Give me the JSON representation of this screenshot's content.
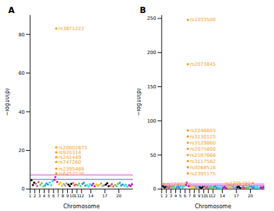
{
  "chart_data": [
    {
      "type": "scatter",
      "title": "A",
      "x_label": "Chromosome",
      "y_label": "−log10(p)",
      "xlim": [
        1,
        23
      ],
      "xticks": [
        1,
        2,
        3,
        4,
        5,
        6,
        7,
        8,
        9,
        10,
        11,
        12,
        14,
        17,
        20
      ],
      "ylim": [
        0,
        90
      ],
      "yticks": [
        0,
        20,
        40,
        60,
        80
      ],
      "colors": [
        "#000000",
        "#df536b",
        "#61d04f",
        "#2297e6",
        "#28e2e5",
        "#cd0bbc",
        "#f5c710",
        "#9e9e9e",
        "#000000",
        "#df536b",
        "#61d04f",
        "#2297e6",
        "#28e2e5",
        "#cd0bbc",
        "#f5c710",
        "#9e9e9e",
        "#000000",
        "#df536b",
        "#61d04f",
        "#2297e6",
        "#28e2e5",
        "#cd0bbc"
      ],
      "hit_color": "#f0a030",
      "hlines": [
        {
          "value": 7.3,
          "color": "#e040e0"
        },
        {
          "value": 5,
          "color": "#4b4bff"
        }
      ],
      "points": [
        [
          1.3,
          4.6
        ],
        [
          1.6,
          2.1
        ],
        [
          1.85,
          3.3
        ],
        [
          2.2,
          2.8
        ],
        [
          2.5,
          1.6
        ],
        [
          2.8,
          3.6
        ],
        [
          3.2,
          2.2
        ],
        [
          3.5,
          3.1
        ],
        [
          3.8,
          1.4
        ],
        [
          4.2,
          1.9
        ],
        [
          4.5,
          2.9
        ],
        [
          4.8,
          2.4
        ],
        [
          5.2,
          3.4
        ],
        [
          5.5,
          2.0
        ],
        [
          5.8,
          4.1
        ],
        [
          6.2,
          4.8
        ],
        [
          6.4,
          6.2
        ],
        [
          6.8,
          3.7
        ],
        [
          7.2,
          2.5
        ],
        [
          7.5,
          3.2
        ],
        [
          7.8,
          1.7
        ],
        [
          8.2,
          2.6
        ],
        [
          8.5,
          1.8
        ],
        [
          8.8,
          3.0
        ],
        [
          9.2,
          2.3
        ],
        [
          9.5,
          1.5
        ],
        [
          9.8,
          2.7
        ],
        [
          10.2,
          3.1
        ],
        [
          10.5,
          1.9
        ],
        [
          10.8,
          2.4
        ],
        [
          11.2,
          2.0
        ],
        [
          11.5,
          2.9
        ],
        [
          11.8,
          1.6
        ],
        [
          12.2,
          2.7
        ],
        [
          12.5,
          3.3
        ],
        [
          12.8,
          1.8
        ],
        [
          13.2,
          2.1
        ],
        [
          13.5,
          1.4
        ],
        [
          13.8,
          2.5
        ],
        [
          14.2,
          1.9
        ],
        [
          14.5,
          2.8
        ],
        [
          14.8,
          1.5
        ],
        [
          15.2,
          2.4
        ],
        [
          15.5,
          1.7
        ],
        [
          15.8,
          2.2
        ],
        [
          16.2,
          2.9
        ],
        [
          16.5,
          1.6
        ],
        [
          16.8,
          2.0
        ],
        [
          17.2,
          2.3
        ],
        [
          17.5,
          3.0
        ],
        [
          17.8,
          1.5
        ],
        [
          18.2,
          1.8
        ],
        [
          18.5,
          2.6
        ],
        [
          18.8,
          1.4
        ],
        [
          19.2,
          2.2
        ],
        [
          19.5,
          1.5
        ],
        [
          19.8,
          2.7
        ],
        [
          20.2,
          3.2
        ],
        [
          20.5,
          1.9
        ],
        [
          20.8,
          2.4
        ],
        [
          21.2,
          1.7
        ],
        [
          21.5,
          2.3
        ],
        [
          21.8,
          1.3
        ],
        [
          22.2,
          2.0
        ],
        [
          22.5,
          1.6
        ],
        [
          22.8,
          2.5
        ]
      ],
      "hits": [
        {
          "x": 6.6,
          "y": 83,
          "label": "rs3871222"
        },
        {
          "x": 6.6,
          "y": 21.5,
          "label": "rs20002873"
        },
        {
          "x": 6.6,
          "y": 19,
          "label": "rs920314"
        },
        {
          "x": 6.6,
          "y": 16.5,
          "label": "rs241449"
        },
        {
          "x": 6.6,
          "y": 14,
          "label": "rs747260"
        },
        {
          "x": 6.6,
          "y": 10.5,
          "label": "rs2395488"
        },
        {
          "x": 6.6,
          "y": 8,
          "label": "rs6457536"
        }
      ]
    },
    {
      "type": "scatter",
      "title": "B",
      "x_label": "Chromosome",
      "y_label": "−log10(p)",
      "xlim": [
        1,
        23
      ],
      "xticks": [
        1,
        2,
        3,
        4,
        5,
        6,
        7,
        8,
        9,
        10,
        11,
        12,
        14,
        17,
        20
      ],
      "ylim": [
        0,
        255
      ],
      "yticks": [
        0,
        50,
        100,
        150,
        200,
        250
      ],
      "colors": [
        "#000000",
        "#df536b",
        "#61d04f",
        "#2297e6",
        "#28e2e5",
        "#cd0bbc",
        "#f5c710",
        "#9e9e9e",
        "#000000",
        "#df536b",
        "#61d04f",
        "#2297e6",
        "#28e2e5",
        "#cd0bbc",
        "#f5c710",
        "#9e9e9e",
        "#000000",
        "#df536b",
        "#61d04f",
        "#2297e6",
        "#28e2e5",
        "#cd0bbc"
      ],
      "hit_color": "#f0a030",
      "hlines": [
        {
          "value": 7.3,
          "color": "#e040e0"
        },
        {
          "value": 5,
          "color": "#4b4bff"
        }
      ],
      "points": [
        [
          1.3,
          3.9
        ],
        [
          1.6,
          2.4
        ],
        [
          1.85,
          3.0
        ],
        [
          2.2,
          3.1
        ],
        [
          2.5,
          1.8
        ],
        [
          2.8,
          3.3
        ],
        [
          3.2,
          2.5
        ],
        [
          3.5,
          3.6
        ],
        [
          3.8,
          1.6
        ],
        [
          4.2,
          2.2
        ],
        [
          4.5,
          3.2
        ],
        [
          4.8,
          2.1
        ],
        [
          5.2,
          3.8
        ],
        [
          5.5,
          2.3
        ],
        [
          5.8,
          4.4
        ],
        [
          6.2,
          6.0
        ],
        [
          6.4,
          9.5
        ],
        [
          6.8,
          4.2
        ],
        [
          7.2,
          2.8
        ],
        [
          7.5,
          3.5
        ],
        [
          7.8,
          1.9
        ],
        [
          8.2,
          2.9
        ],
        [
          8.5,
          2.0
        ],
        [
          8.8,
          3.4
        ],
        [
          9.2,
          2.6
        ],
        [
          9.5,
          1.7
        ],
        [
          9.8,
          3.0
        ],
        [
          10.2,
          3.4
        ],
        [
          10.5,
          2.2
        ],
        [
          10.8,
          2.7
        ],
        [
          11.2,
          2.3
        ],
        [
          11.5,
          3.2
        ],
        [
          11.8,
          1.8
        ],
        [
          12.2,
          3.0
        ],
        [
          12.5,
          3.6
        ],
        [
          12.8,
          2.0
        ],
        [
          13.2,
          2.4
        ],
        [
          13.5,
          1.6
        ],
        [
          13.8,
          2.8
        ],
        [
          14.2,
          2.1
        ],
        [
          14.5,
          3.1
        ],
        [
          14.8,
          1.7
        ],
        [
          15.2,
          2.7
        ],
        [
          15.5,
          1.9
        ],
        [
          15.8,
          2.5
        ],
        [
          16.2,
          3.2
        ],
        [
          16.5,
          1.8
        ],
        [
          16.8,
          2.2
        ],
        [
          17.2,
          2.6
        ],
        [
          17.5,
          3.3
        ],
        [
          17.8,
          1.7
        ],
        [
          18.2,
          2.0
        ],
        [
          18.5,
          2.9
        ],
        [
          18.8,
          1.6
        ],
        [
          19.2,
          2.5
        ],
        [
          19.5,
          1.7
        ],
        [
          19.8,
          3.0
        ],
        [
          20.2,
          3.5
        ],
        [
          20.5,
          2.1
        ],
        [
          20.8,
          2.7
        ],
        [
          21.2,
          1.9
        ],
        [
          21.5,
          2.6
        ],
        [
          21.8,
          1.5
        ],
        [
          22.2,
          2.3
        ],
        [
          22.5,
          1.8
        ],
        [
          22.8,
          2.8
        ]
      ],
      "hits": [
        {
          "x": 6.6,
          "y": 248,
          "label": "rs1033500"
        },
        {
          "x": 6.6,
          "y": 183,
          "label": "rs2073845"
        },
        {
          "x": 6.6,
          "y": 86,
          "label": "rs2246603"
        },
        {
          "x": 6.6,
          "y": 77,
          "label": "rs3130125"
        },
        {
          "x": 6.6,
          "y": 68,
          "label": "rs3129860"
        },
        {
          "x": 6.6,
          "y": 59,
          "label": "rs2075800"
        },
        {
          "x": 6.6,
          "y": 50,
          "label": "rs2187668"
        },
        {
          "x": 6.6,
          "y": 41,
          "label": "rs3117582"
        },
        {
          "x": 6.6,
          "y": 32,
          "label": "rs9268516"
        },
        {
          "x": 6.6,
          "y": 23,
          "label": "rs2395175"
        },
        {
          "x": 1.5,
          "y": 7.5,
          "label": "rs3740316"
        },
        {
          "x": 20.5,
          "y": 8.5,
          "label": "rs2305480"
        }
      ]
    }
  ]
}
